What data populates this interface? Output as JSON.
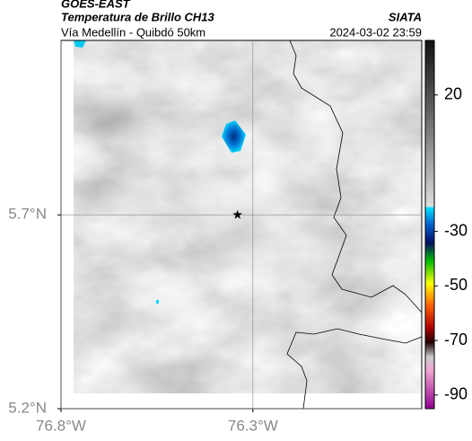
{
  "chart_data": {
    "type": "map",
    "title": "GOES-EAST",
    "subtitle": "Temperatura de Brillo CH13",
    "source": "SIATA",
    "region": "Vía Medellín - Quibdó 50km",
    "timestamp": "2024-03-02 23:59",
    "xlim": [
      -76.8,
      -75.86
    ],
    "ylim": [
      5.2,
      6.15
    ],
    "xticks": [
      {
        "value": -76.8,
        "label": "76.8°W"
      },
      {
        "value": -76.3,
        "label": "76.3°W"
      }
    ],
    "yticks": [
      {
        "value": 5.2,
        "label": "5.2°N"
      },
      {
        "value": 5.7,
        "label": "5.7°N"
      }
    ],
    "grid": true,
    "marker": {
      "lon": -76.34,
      "lat": 5.7
    },
    "colorbar": {
      "lim": [
        -95,
        40
      ],
      "ticks": [
        20,
        -30,
        -50,
        -70,
        -90
      ]
    }
  }
}
